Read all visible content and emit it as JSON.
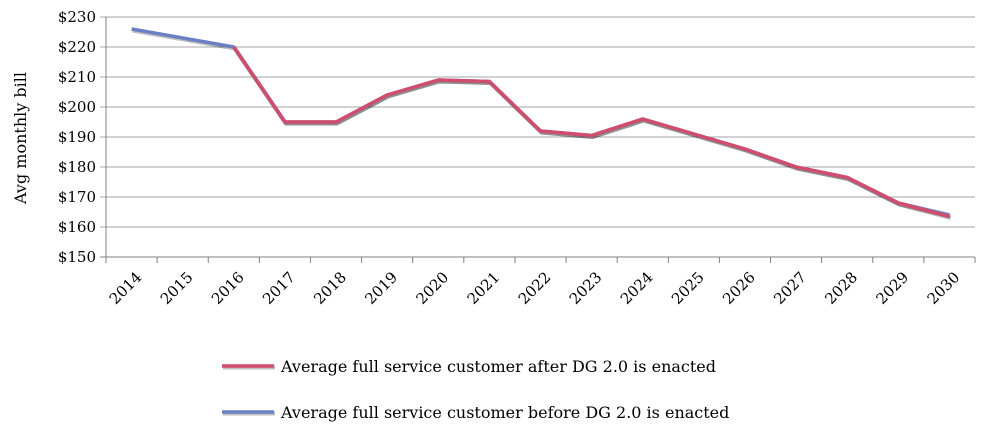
{
  "chart_data": {
    "type": "line",
    "title": "",
    "xlabel": "",
    "ylabel": "Avg monthly bill",
    "ylim": [
      150,
      230
    ],
    "y_ticks": [
      "$150",
      "$160",
      "$170",
      "$180",
      "$190",
      "$200",
      "$210",
      "$220",
      "$230"
    ],
    "categories": [
      "2014",
      "2015",
      "2016",
      "2017",
      "2018",
      "2019",
      "2020",
      "2021",
      "2022",
      "2023",
      "2024",
      "2025",
      "2026",
      "2027",
      "2028",
      "2029",
      "2030"
    ],
    "grid": true,
    "legend_position": "bottom",
    "series": [
      {
        "name": "Average full service customer before DG 2.0 is enacted",
        "color": "#6a7fc4",
        "values": [
          226,
          null,
          220,
          195,
          195,
          204,
          209,
          208.5,
          192,
          190.5,
          196,
          191,
          186,
          180,
          176.5,
          168,
          164
        ]
      },
      {
        "name": "Average full service customer after DG 2.0 is enacted",
        "color": "#d14d6e",
        "values": [
          null,
          null,
          220,
          195,
          195,
          204,
          209,
          208.5,
          192,
          190.5,
          196,
          191,
          186,
          180,
          176.5,
          168,
          163.5
        ]
      }
    ]
  }
}
